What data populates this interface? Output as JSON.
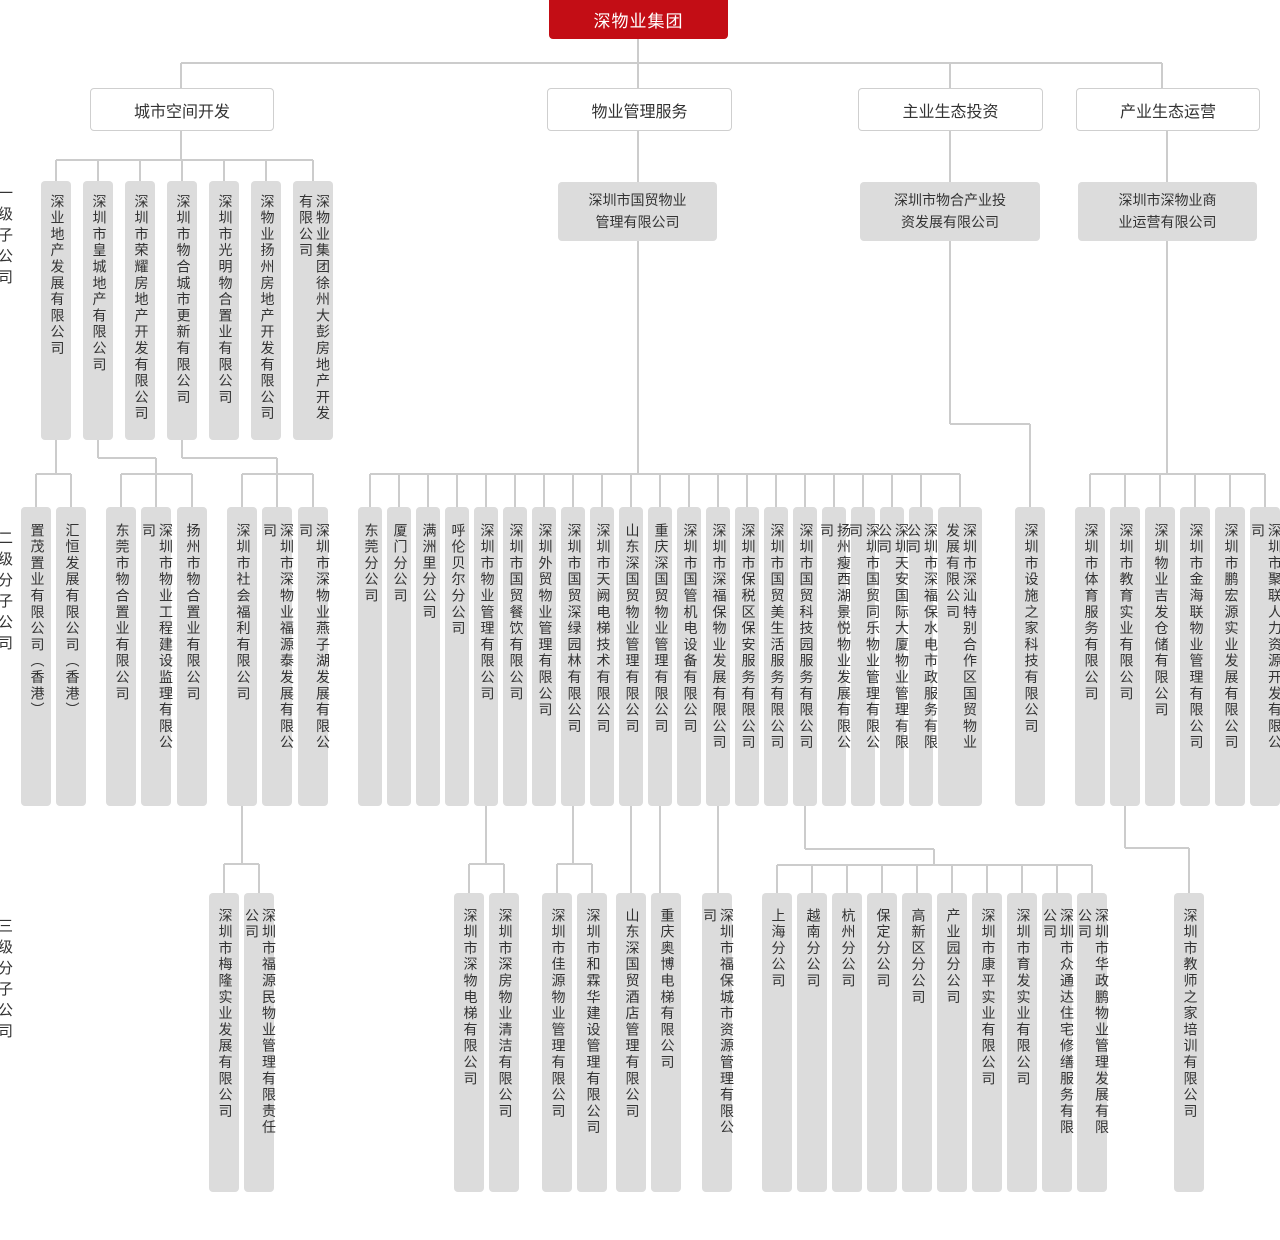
{
  "root": "深物业集团",
  "segments": [
    "城市空间开发",
    "物业管理服务",
    "主业生态投资",
    "产业生态运营"
  ],
  "holding_companies": [
    "深圳市国贸物业\n管理有限公司",
    "深圳市物合产业投\n资发展有限公司",
    "深圳市深物业商\n业运营有限公司"
  ],
  "level_labels": [
    "一级子公司",
    "二级分子公司",
    "三级分子公司"
  ],
  "level1": [
    "深业地产发展有限公司",
    "深圳市皇城地产有限公司",
    "深圳市荣耀房地产开发有限公司",
    "深圳市物合城市更新有限公司",
    "深圳市光明物合置业有限公司",
    "深物业扬州房地产开发有限公司",
    "深物业集团徐州大彭房地产开发有限公司"
  ],
  "level2": [
    "置茂置业有限公司（香港）",
    "汇恒发展有限公司（香港）",
    "东莞市物合置业有限公司",
    "深圳市物业工程建设监理有限公司",
    "扬州市物合置业有限公司",
    "深圳市社会福利有限公司",
    "深圳市深物业福源泰发展有限公司",
    "深圳市深物业燕子湖发展有限公司",
    "东莞分公司",
    "厦门分公司",
    "满洲里分公司",
    "呼伦贝尔分公司",
    "深圳市物业管理有限公司",
    "深圳市国贸餐饮有限公司",
    "深圳外贸物业管理有限公司",
    "深圳市国贸深绿园林有限公司",
    "深圳市天阙电梯技术有限公司",
    "山东深国贸物业管理有限公司",
    "重庆深国贸物业管理有限公司",
    "深圳市国管机电设备有限公司",
    "深圳市深福保物业发展有限公司",
    "深圳市保税区保安服务有限公司",
    "深圳市国贸美生活服务有限公司",
    "深圳市国贸科技园服务有限公司",
    "扬州瘦西湖景悦物业发展有限公司",
    "深圳市国贸同乐物业管理有限公司",
    "深圳天安国际大厦物业管理有限公司",
    "深圳市深福保水电市政服务有限公司",
    "深圳市深汕特别合作区国贸物业发展有限公司",
    "深圳市设施之家科技有限公司",
    "深圳市体育服务有限公司",
    "深圳市教育实业有限公司",
    "深圳物业吉发仓储有限公司",
    "深圳市金海联物业管理有限公司",
    "深圳市鹏宏源实业发展有限公司",
    "深圳市聚联人力资源开发有限公司"
  ],
  "level3": [
    "深圳市梅隆实业发展有限公司",
    "深圳市福源民物业管理有限责任公司",
    "深圳市深物电梯有限公司",
    "深圳市深房物业清洁有限公司",
    "深圳市佳源物业管理有限公司",
    "深圳市和霖华建设管理有限公司",
    "山东深国贸酒店管理有限公司",
    "重庆奥博电梯有限公司",
    "深圳市福保城市资源管理有限公司",
    "上海分公司",
    "越南分公司",
    "杭州分公司",
    "保定分公司",
    "高新区分公司",
    "产业园分公司",
    "深圳市康平实业有限公司",
    "深圳市育发实业有限公司",
    "深圳市众通达住宅修缮服务有限公司",
    "深圳市华政鹏物业管理发展有限公司",
    "深圳市教师之家培训有限公司"
  ],
  "colors": {
    "root": "#c30d15",
    "box": "#dcdcdc",
    "line": "#cccccc"
  }
}
